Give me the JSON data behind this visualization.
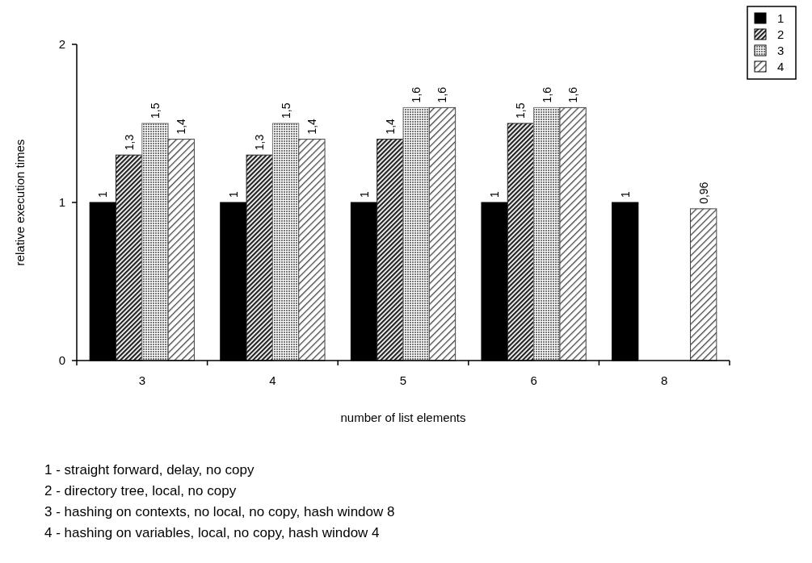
{
  "chart_data": {
    "type": "bar",
    "xlabel": "number of list elements",
    "ylabel": "relative execution times",
    "categories": [
      "3",
      "4",
      "5",
      "6",
      "8"
    ],
    "series": [
      {
        "name": "1",
        "color": "#000000",
        "values": [
          1,
          1,
          1,
          1,
          1
        ],
        "value_labels": [
          "1",
          "1",
          "1",
          "1",
          "1"
        ]
      },
      {
        "name": "2",
        "color": "#222222",
        "values": [
          1.3,
          1.3,
          1.4,
          1.5,
          null
        ],
        "value_labels": [
          "1,3",
          "1,3",
          "1,4",
          "1,5",
          null
        ]
      },
      {
        "name": "3",
        "color": "#777777",
        "values": [
          1.5,
          1.5,
          1.6,
          1.6,
          null
        ],
        "value_labels": [
          "1,5",
          "1,5",
          "1,6",
          "1,6",
          null
        ]
      },
      {
        "name": "4",
        "color": "#444444",
        "values": [
          1.4,
          1.4,
          1.6,
          1.6,
          0.96
        ],
        "value_labels": [
          "1,4",
          "1,4",
          "1,6",
          "1,6",
          "0,96"
        ]
      }
    ],
    "ylim": [
      0,
      2
    ],
    "yticks": [
      0,
      1,
      2
    ],
    "grid": false,
    "legend": "top right",
    "annotations": [
      "1 - straight forward, delay, no copy",
      "2 - directory tree, local, no copy",
      "3 - hashing on contexts, no local, no copy, hash window 8",
      "4 - hashing on variables, local, no copy, hash window 4"
    ]
  }
}
